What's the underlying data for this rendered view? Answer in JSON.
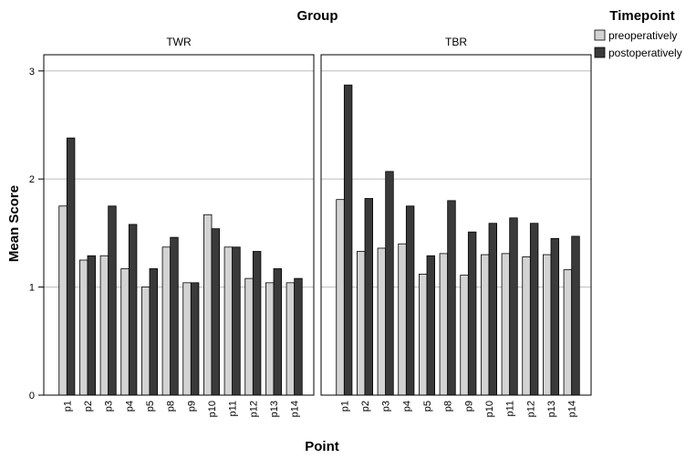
{
  "chart_data": {
    "type": "bar",
    "group_title": "Group",
    "xlabel": "Point",
    "ylabel": "Mean Score",
    "ylim": [
      0,
      3.15
    ],
    "yticks": [
      0,
      1,
      2,
      3
    ],
    "grid": true,
    "legend": {
      "title": "Timepoint",
      "position": "top-right",
      "entries": [
        "preoperatively",
        "postoperatively"
      ]
    },
    "colors": {
      "preoperatively": "#d3d3d3",
      "postoperatively": "#3a3a3a",
      "grid": "#bdbdbd",
      "frame": "#000000"
    },
    "categories": [
      "p1",
      "p2",
      "p3",
      "p4",
      "p5",
      "p8",
      "p9",
      "p10",
      "p11",
      "p12",
      "p13",
      "p14"
    ],
    "panels": [
      {
        "name": "TWR",
        "series": [
          {
            "name": "preoperatively",
            "values": [
              1.75,
              1.25,
              1.29,
              1.17,
              1.0,
              1.37,
              1.04,
              1.67,
              1.37,
              1.08,
              1.04,
              1.04
            ]
          },
          {
            "name": "postoperatively",
            "values": [
              2.38,
              1.29,
              1.75,
              1.58,
              1.17,
              1.46,
              1.04,
              1.54,
              1.37,
              1.33,
              1.17,
              1.08
            ]
          }
        ]
      },
      {
        "name": "TBR",
        "series": [
          {
            "name": "preoperatively",
            "values": [
              1.81,
              1.33,
              1.36,
              1.4,
              1.12,
              1.31,
              1.11,
              1.3,
              1.31,
              1.28,
              1.3,
              1.16
            ]
          },
          {
            "name": "postoperatively",
            "values": [
              2.87,
              1.82,
              2.07,
              1.75,
              1.29,
              1.8,
              1.51,
              1.59,
              1.64,
              1.59,
              1.45,
              1.47
            ]
          }
        ]
      }
    ]
  }
}
